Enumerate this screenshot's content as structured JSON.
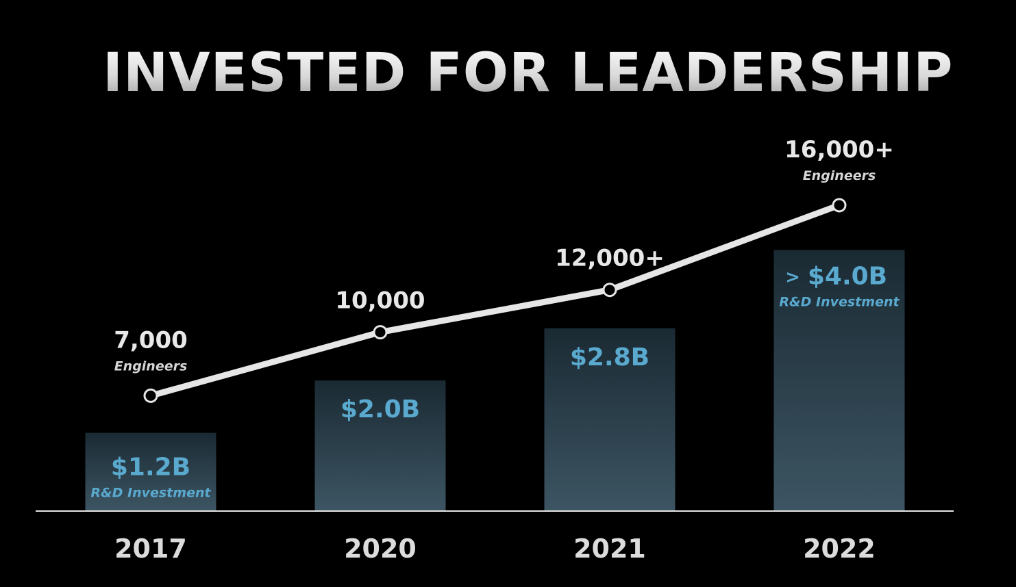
{
  "title": "INVESTED FOR LEADERSHIP",
  "colors": {
    "background": "#000000",
    "bar_top": "#1a2a33",
    "bar_bottom": "#3d5563",
    "bar_text": "#5aa9cf",
    "line": "#e6e6e6",
    "text": "#e8e8e8"
  },
  "chart_data": {
    "type": "bar",
    "categories": [
      "2017",
      "2020",
      "2021",
      "2022"
    ],
    "series": [
      {
        "name": "R&D Investment",
        "unit": "$B",
        "values": [
          1.2,
          2.0,
          2.8,
          4.0
        ],
        "labels": [
          {
            "value": "$1.2B",
            "prefix": "",
            "sub": "R&D Investment"
          },
          {
            "value": "$2.0B",
            "prefix": "",
            "sub": ""
          },
          {
            "value": "$2.8B",
            "prefix": "",
            "sub": ""
          },
          {
            "value": "$4.0B",
            "prefix": ">",
            "sub": "R&D Investment"
          }
        ]
      },
      {
        "name": "Engineers",
        "type": "line",
        "values": [
          7000,
          10000,
          12000,
          16000
        ],
        "labels": [
          {
            "value": "7,000",
            "sub": "Engineers"
          },
          {
            "value": "10,000",
            "sub": ""
          },
          {
            "value": "12,000+",
            "sub": ""
          },
          {
            "value": "16,000+",
            "sub": "Engineers"
          }
        ]
      }
    ],
    "grid": false,
    "legend": "none"
  }
}
